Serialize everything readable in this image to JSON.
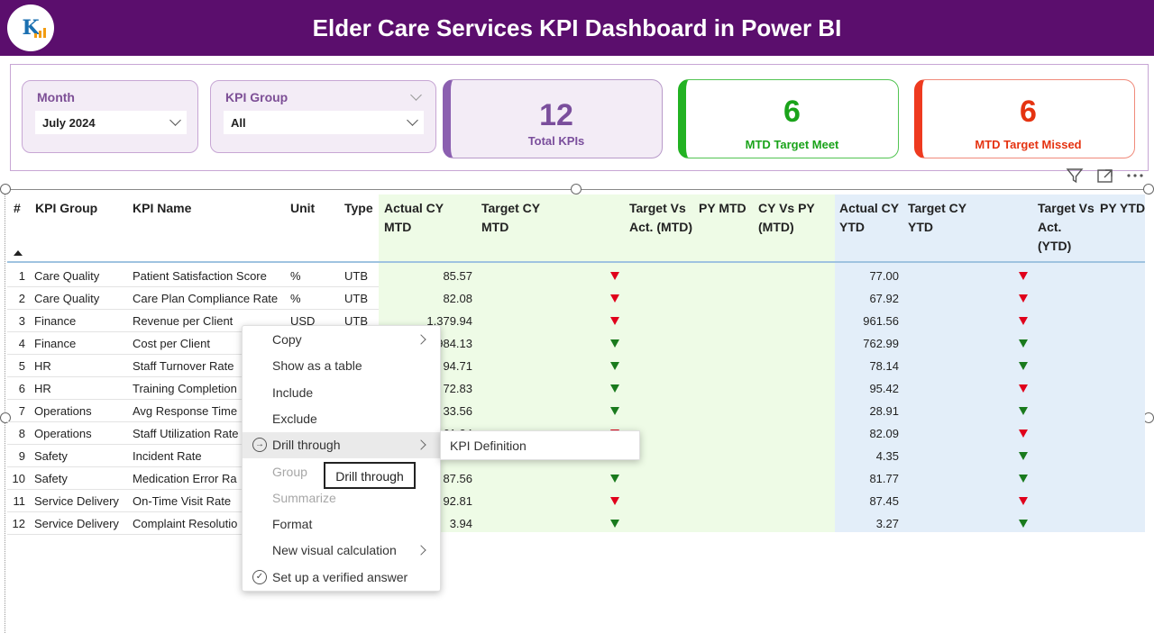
{
  "header": {
    "title": "Elder Care Services KPI Dashboard in Power BI",
    "logo_text": "K"
  },
  "slicers": {
    "month": {
      "label": "Month",
      "value": "July 2024"
    },
    "kpi_group": {
      "label": "KPI Group",
      "value": "All"
    }
  },
  "cards": [
    {
      "value": "12",
      "label": "Total KPIs",
      "accent": "#8b5fb0",
      "value_color": "#7a4e9c"
    },
    {
      "value": "6",
      "label": "MTD Target Meet",
      "accent": "#22b222",
      "value_color": "#1aa31a"
    },
    {
      "value": "6",
      "label": "MTD Target Missed",
      "accent": "#ee3a1f",
      "value_color": "#e53311"
    }
  ],
  "toolbar": {
    "icons": [
      "filter-icon",
      "focus-mode-icon",
      "more-options-icon"
    ]
  },
  "table": {
    "headers": {
      "num": "#",
      "group": "KPI Group",
      "name": "KPI Name",
      "unit": "Unit",
      "type": "Type",
      "actual_mtd": "Actual CY MTD",
      "target_mtd": "Target CY MTD",
      "tva_mtd": "Target Vs Act. (MTD)",
      "py_mtd": "PY MTD",
      "cyvspy_mtd": "CY Vs PY (MTD)",
      "actual_ytd": "Actual CY YTD",
      "target_ytd": "Target CY YTD",
      "tva_ytd": "Target Vs Act. (YTD)",
      "py_ytd": "PY YTD"
    },
    "rows": [
      {
        "n": "1",
        "group": "Care Quality",
        "name": "Patient Satisfaction Score",
        "unit": "%",
        "type": "UTB",
        "actual_mtd": "85.57",
        "mtd_status": "down-red",
        "actual_ytd": "77.00",
        "ytd_status": "down-red"
      },
      {
        "n": "2",
        "group": "Care Quality",
        "name": "Care Plan Compliance Rate",
        "unit": "%",
        "type": "UTB",
        "actual_mtd": "82.08",
        "mtd_status": "down-red",
        "actual_ytd": "67.92",
        "ytd_status": "down-red"
      },
      {
        "n": "3",
        "group": "Finance",
        "name": "Revenue per Client",
        "unit": "USD",
        "type": "UTB",
        "actual_mtd": "1,379.94",
        "mtd_status": "down-red",
        "actual_ytd": "961.56",
        "ytd_status": "down-red"
      },
      {
        "n": "4",
        "group": "Finance",
        "name": "Cost per Client",
        "unit": "",
        "type": "",
        "actual_mtd": "984.13",
        "mtd_status": "down-green",
        "actual_ytd": "762.99",
        "ytd_status": "down-green"
      },
      {
        "n": "5",
        "group": "HR",
        "name": "Staff Turnover Rate",
        "unit": "",
        "type": "",
        "actual_mtd": "94.71",
        "mtd_status": "down-green",
        "actual_ytd": "78.14",
        "ytd_status": "down-green"
      },
      {
        "n": "6",
        "group": "HR",
        "name": "Training Completion",
        "unit": "",
        "type": "",
        "actual_mtd": "72.83",
        "mtd_status": "down-green",
        "actual_ytd": "95.42",
        "ytd_status": "down-red"
      },
      {
        "n": "7",
        "group": "Operations",
        "name": "Avg Response Time",
        "unit": "",
        "type": "",
        "actual_mtd": "33.56",
        "mtd_status": "down-green",
        "actual_ytd": "28.91",
        "ytd_status": "down-green"
      },
      {
        "n": "8",
        "group": "Operations",
        "name": "Staff Utilization Rate",
        "unit": "",
        "type": "",
        "actual_mtd": "61.34",
        "mtd_status": "down-red",
        "actual_ytd": "82.09",
        "ytd_status": "down-red"
      },
      {
        "n": "9",
        "group": "Safety",
        "name": "Incident Rate",
        "unit": "",
        "type": "",
        "actual_mtd": "",
        "mtd_status": "",
        "actual_ytd": "4.35",
        "ytd_status": "down-green"
      },
      {
        "n": "10",
        "group": "Safety",
        "name": "Medication Error Ra",
        "unit": "",
        "type": "",
        "actual_mtd": "87.56",
        "mtd_status": "down-green",
        "actual_ytd": "81.77",
        "ytd_status": "down-green"
      },
      {
        "n": "11",
        "group": "Service Delivery",
        "name": "On-Time Visit Rate",
        "unit": "",
        "type": "",
        "actual_mtd": "92.81",
        "mtd_status": "down-red",
        "actual_ytd": "87.45",
        "ytd_status": "down-red"
      },
      {
        "n": "12",
        "group": "Service Delivery",
        "name": "Complaint Resolutio",
        "unit": "",
        "type": "",
        "actual_mtd": "3.94",
        "mtd_status": "down-green",
        "actual_ytd": "3.27",
        "ytd_status": "down-green"
      }
    ]
  },
  "context_menu": {
    "items": [
      {
        "label": "Copy",
        "submenu": true,
        "disabled": false,
        "icon": ""
      },
      {
        "label": "Show as a table",
        "submenu": false,
        "disabled": false,
        "icon": ""
      },
      {
        "label": "Include",
        "submenu": false,
        "disabled": false,
        "icon": ""
      },
      {
        "label": "Exclude",
        "submenu": false,
        "disabled": false,
        "icon": ""
      },
      {
        "label": "Drill through",
        "submenu": true,
        "disabled": false,
        "icon": "drill-through-icon",
        "hover": true
      },
      {
        "label": "Group",
        "submenu": false,
        "disabled": true,
        "icon": ""
      },
      {
        "label": "Summarize",
        "submenu": false,
        "disabled": true,
        "icon": ""
      },
      {
        "label": "Format",
        "submenu": false,
        "disabled": false,
        "icon": ""
      },
      {
        "label": "New visual calculation",
        "submenu": true,
        "disabled": false,
        "icon": ""
      },
      {
        "label": "Set up a verified answer",
        "submenu": false,
        "disabled": false,
        "icon": "verified-check-icon"
      }
    ],
    "submenu_item": "KPI Definition",
    "tooltip": "Drill through"
  },
  "colors": {
    "header_bg": "#5b0e6d",
    "down_red": "#e0001b",
    "down_green": "#197a1d"
  }
}
